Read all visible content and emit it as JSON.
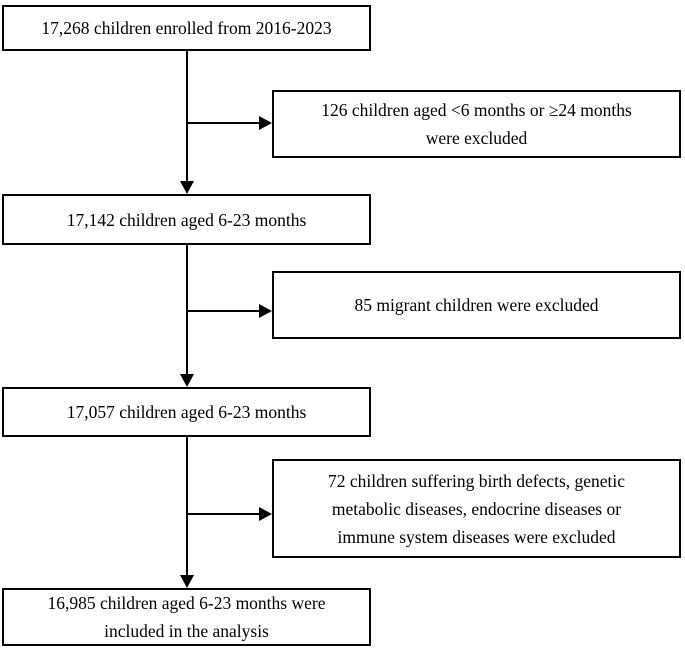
{
  "diagram": {
    "type": "flowchart",
    "colors": {
      "box_border": "#000000",
      "box_background": "#ffffff",
      "arrow": "#000000",
      "text": "#000000",
      "page_background": "#ffffff"
    },
    "boxes": {
      "enrolled": {
        "lines": [
          "17,268 children enrolled from 2016-2023"
        ]
      },
      "aged_6_23": {
        "lines": [
          "17,142 children aged 6-23 months"
        ]
      },
      "after_migrant": {
        "lines": [
          "17,057 children aged 6-23 months"
        ]
      },
      "final": {
        "lines": [
          "16,985 children aged 6-23 months were",
          "included in the analysis"
        ]
      },
      "excluded_age": {
        "lines": [
          "126 children aged <6 months or ≥24 months",
          "were excluded"
        ]
      },
      "excluded_migrant": {
        "lines": [
          "85 migrant children were excluded"
        ]
      },
      "excluded_disease": {
        "lines": [
          "72 children suffering birth defects, genetic",
          "metabolic diseases, endocrine diseases or",
          "immune system diseases were excluded"
        ]
      }
    }
  }
}
